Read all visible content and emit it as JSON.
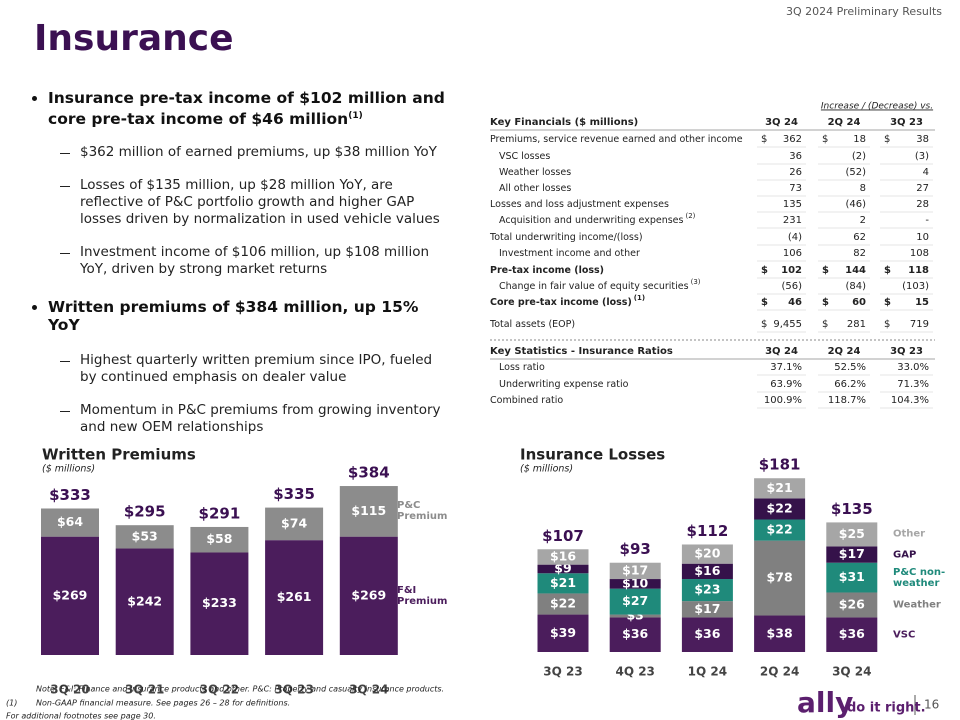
{
  "header": {
    "deck": "3Q 2024 Preliminary Results",
    "title": "Insurance"
  },
  "bullets": [
    {
      "text": "Insurance pre-tax income of $102 million and core pre-tax income of $46 million",
      "sup": "(1)",
      "subs": [
        "$362 million of earned premiums, up $38 million YoY",
        "Losses of $135 million, up $28 million YoY, are reflective of P&C portfolio growth and higher GAP losses driven by normalization in used vehicle values",
        "Investment income of $106 million, up $108 million YoY, driven by strong market returns"
      ]
    },
    {
      "text": "Written premiums of $384 million, up 15% YoY",
      "subs": [
        "Highest quarterly written premium since IPO, fueled by continued emphasis on dealer value",
        "Momentum in P&C premiums from growing inventory and new OEM relationships"
      ]
    }
  ],
  "table": {
    "super_header": "Increase / (Decrease) vs.",
    "columns": [
      "Key Financials ($ millions)",
      "3Q 24",
      "2Q 24",
      "3Q 23"
    ],
    "rows": [
      {
        "label": "Premiums, service revenue earned and other income",
        "cells": [
          {
            "cur": "$",
            "num": "362"
          },
          {
            "cur": "$",
            "num": "18"
          },
          {
            "cur": "$",
            "num": "38"
          }
        ]
      },
      {
        "label": "VSC losses",
        "indent": true,
        "cells": [
          "36",
          "(2)",
          "(3)"
        ]
      },
      {
        "label": "Weather losses",
        "indent": true,
        "cells": [
          "26",
          "(52)",
          "4"
        ]
      },
      {
        "label": "All other losses",
        "indent": true,
        "cells": [
          "73",
          "8",
          "27"
        ]
      },
      {
        "label": "Losses and loss adjustment expenses",
        "cells": [
          "135",
          "(46)",
          "28"
        ]
      },
      {
        "label": "Acquisition and underwriting expenses",
        "sup": "(2)",
        "indent": true,
        "cells": [
          "231",
          "2",
          "-"
        ]
      },
      {
        "label": "Total underwriting income/(loss)",
        "cells": [
          "(4)",
          "62",
          "10"
        ]
      },
      {
        "label": "Investment income and other",
        "indent": true,
        "cells": [
          "106",
          "82",
          "108"
        ]
      },
      {
        "label": "Pre-tax income (loss)",
        "bold": true,
        "cells": [
          {
            "cur": "$",
            "num": "102"
          },
          {
            "cur": "$",
            "num": "144"
          },
          {
            "cur": "$",
            "num": "118"
          }
        ]
      },
      {
        "label": "Change in fair value of equity securities",
        "sup": "(3)",
        "indent": true,
        "cells": [
          "(56)",
          "(84)",
          "(103)"
        ]
      },
      {
        "label": "Core pre-tax income (loss)",
        "sup": "(1)",
        "bold": true,
        "cells": [
          {
            "cur": "$",
            "num": "46"
          },
          {
            "cur": "$",
            "num": "60"
          },
          {
            "cur": "$",
            "num": "15"
          }
        ]
      },
      {
        "label": "Total assets (EOP)",
        "cells": [
          {
            "cur": "$",
            "num": "9,455"
          },
          {
            "cur": "$",
            "num": "281"
          },
          {
            "cur": "$",
            "num": "719"
          }
        ]
      }
    ]
  },
  "stats_table": {
    "columns": [
      "Key Statistics - Insurance Ratios",
      "3Q 24",
      "2Q 24",
      "3Q 23"
    ],
    "rows": [
      {
        "label": "Loss ratio",
        "indent": true,
        "cells": [
          "37.1%",
          "52.5%",
          "33.0%"
        ]
      },
      {
        "label": "Underwriting expense ratio",
        "indent": true,
        "cells": [
          "63.9%",
          "66.2%",
          "71.3%"
        ]
      },
      {
        "label": "Combined ratio",
        "cells": [
          "100.9%",
          "118.7%",
          "104.3%"
        ]
      }
    ]
  },
  "chart_data": [
    {
      "type": "stacked_bar",
      "title": "Written Premiums",
      "subtitle": "($ millions)",
      "categories": [
        "3Q 20",
        "3Q 21",
        "3Q 22",
        "3Q 23",
        "3Q 24"
      ],
      "series": [
        {
          "name": "F&I Premium",
          "color": "#4b1d5c",
          "values": [
            269,
            242,
            233,
            261,
            269
          ],
          "value_labels": [
            "$269",
            "$242",
            "$233",
            "$261",
            "$269"
          ]
        },
        {
          "name": "P&C Premium",
          "color": "#8c8c8c",
          "values": [
            64,
            53,
            58,
            74,
            115
          ],
          "value_labels": [
            "$64",
            "$53",
            "$58",
            "$74",
            "$115"
          ]
        }
      ],
      "totals": {
        "values": [
          333,
          295,
          291,
          335,
          384
        ],
        "value_labels": [
          "$333",
          "$295",
          "$291",
          "$335",
          "$384"
        ]
      }
    },
    {
      "type": "stacked_bar",
      "title": "Insurance Losses",
      "subtitle": "($ millions)",
      "categories": [
        "3Q 23",
        "4Q 23",
        "1Q 24",
        "2Q 24",
        "3Q 24"
      ],
      "series": [
        {
          "name": "VSC",
          "color": "#4b1d5c",
          "values": [
            39,
            36,
            36,
            38,
            36
          ],
          "value_labels": [
            "$39",
            "$36",
            "$36",
            "$38",
            "$36"
          ]
        },
        {
          "name": "Weather",
          "color": "#808080",
          "values": [
            22,
            3,
            17,
            78,
            26
          ],
          "value_labels": [
            "$22",
            "$3",
            "$17",
            "$78",
            "$26"
          ]
        },
        {
          "name": "P&C non-weather",
          "color": "#1f8a7b",
          "values": [
            21,
            27,
            23,
            22,
            31
          ],
          "value_labels": [
            "$21",
            "$27",
            "$23",
            "$22",
            "$31"
          ]
        },
        {
          "name": "GAP",
          "color": "#35124a",
          "values": [
            9,
            10,
            16,
            22,
            17
          ],
          "value_labels": [
            "$9",
            "$10",
            "$16",
            "$22",
            "$17"
          ]
        },
        {
          "name": "Other",
          "color": "#a6a6a6",
          "values": [
            16,
            17,
            20,
            21,
            25
          ],
          "value_labels": [
            "$16",
            "$17",
            "$20",
            "$21",
            "$25"
          ]
        }
      ],
      "totals": {
        "values": [
          107,
          93,
          112,
          181,
          135
        ],
        "value_labels": [
          "$107",
          "$93",
          "$112",
          "$181",
          "$135"
        ]
      }
    }
  ],
  "footer": {
    "note": "Note: F&I: Finance and insurance products and other. P&C: Property and casualty insurance products.",
    "footnote_marker": "(1)",
    "footnote": "Non-GAAP financial measure. See pages 26 – 28 for definitions.",
    "additional": "For additional footnotes see page 30.",
    "logo": "ally",
    "tagline": "do it right.",
    "page": "16"
  }
}
